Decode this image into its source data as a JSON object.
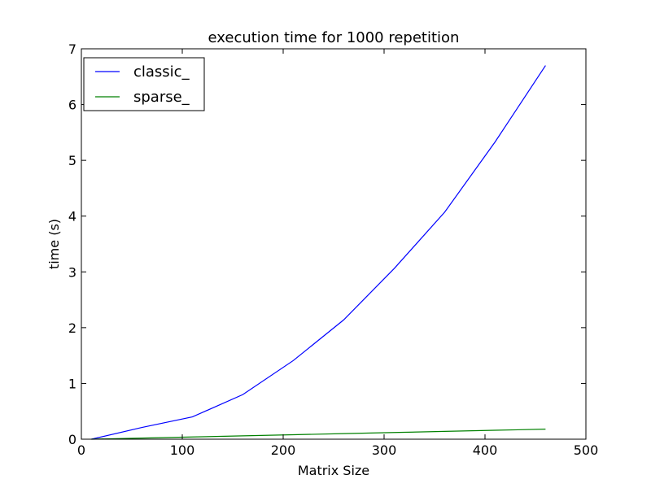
{
  "chart_data": {
    "type": "line",
    "title": "execution time for 1000 repetition",
    "xlabel": "Matrix Size",
    "ylabel": "time (s)",
    "xlim": [
      0,
      500
    ],
    "ylim": [
      0,
      7
    ],
    "xticks": [
      0,
      100,
      200,
      300,
      400,
      500
    ],
    "yticks": [
      0,
      1,
      2,
      3,
      4,
      5,
      6,
      7
    ],
    "grid": false,
    "legend_position": "top-left",
    "x": [
      10,
      60,
      110,
      160,
      210,
      260,
      310,
      360,
      410,
      460
    ],
    "series": [
      {
        "name": "classic_",
        "color": "#0000ff",
        "values": [
          0.0,
          0.21,
          0.4,
          0.8,
          1.41,
          2.14,
          3.06,
          4.07,
          5.33,
          6.7
        ]
      },
      {
        "name": "sparse_",
        "color": "#008000",
        "values": [
          0.0,
          0.02,
          0.04,
          0.06,
          0.08,
          0.1,
          0.12,
          0.14,
          0.16,
          0.18
        ]
      }
    ]
  }
}
